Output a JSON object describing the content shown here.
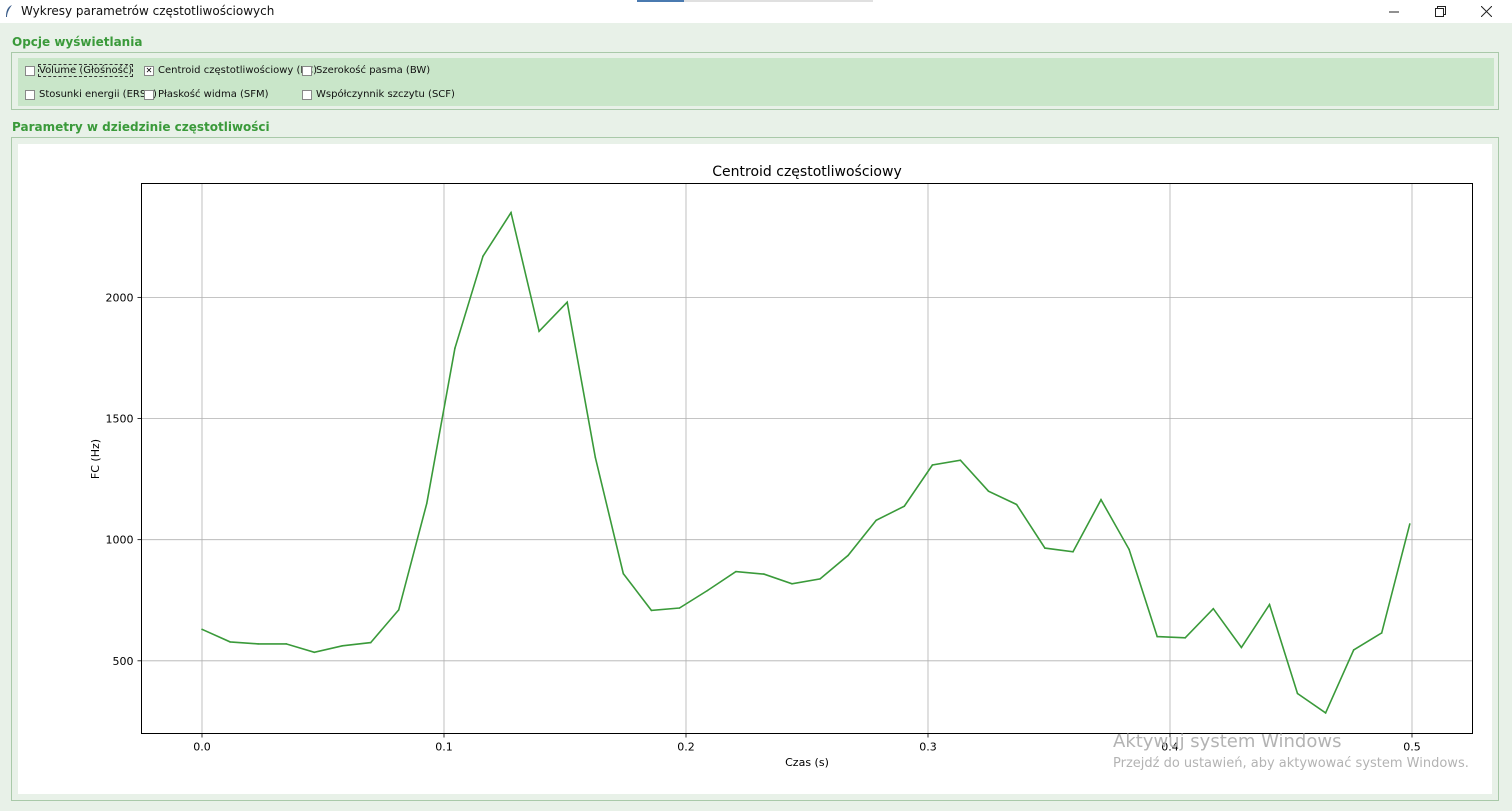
{
  "window": {
    "title": "Wykresy parametrów częstotliwościowych",
    "icon": "feather-icon",
    "controls": [
      "minimize-icon",
      "restore-icon",
      "close-icon"
    ]
  },
  "options": {
    "section_title": "Opcje wyświetlania",
    "items": [
      {
        "label": "Volume (Głośność)",
        "checked": false,
        "focused": true
      },
      {
        "label": "Centroid częstotliwościowy (FC)",
        "checked": true,
        "focused": false
      },
      {
        "label": "Szerokość pasma (BW)",
        "checked": false,
        "focused": false
      },
      {
        "label": "Stosunki energii (ERSB)",
        "checked": false,
        "focused": false
      },
      {
        "label": "Płaskość widma (SFM)",
        "checked": false,
        "focused": false
      },
      {
        "label": "Współczynnik szczytu (SCF)",
        "checked": false,
        "focused": false
      }
    ]
  },
  "plot_section": {
    "section_title": "Parametry w dziedzinie częstotliwości"
  },
  "watermark": {
    "line1": "Aktywuj system Windows",
    "line2": "Przejdź do ustawień, aby aktywować system Windows."
  },
  "colors": {
    "accent": "#3a9a3a",
    "options_bg": "#c9e6c9",
    "window_bg": "#e8f1e8",
    "line": "#3a9a3a"
  },
  "chart_data": {
    "type": "line",
    "title": "Centroid częstotliwościowy",
    "xlabel": "Czas (s)",
    "ylabel": "FC (Hz)",
    "xlim": [
      -0.025,
      0.525
    ],
    "ylim": [
      200,
      2470
    ],
    "grid": true,
    "xticks": [
      0.0,
      0.1,
      0.2,
      0.3,
      0.4,
      0.5
    ],
    "xtick_labels": [
      "0.0",
      "0.1",
      "0.2",
      "0.3",
      "0.4",
      "0.5"
    ],
    "yticks": [
      500,
      1000,
      1500,
      2000
    ],
    "ytick_labels": [
      "500",
      "1000",
      "1500",
      "2000"
    ],
    "series": [
      {
        "color": "#3a9a3a",
        "x": [
          0.0,
          0.0116,
          0.0232,
          0.0348,
          0.0464,
          0.058,
          0.0697,
          0.0813,
          0.0929,
          0.1045,
          0.1161,
          0.1277,
          0.1393,
          0.1509,
          0.1625,
          0.1741,
          0.1857,
          0.1973,
          0.2089,
          0.2206,
          0.2322,
          0.2438,
          0.2554,
          0.267,
          0.2786,
          0.2902,
          0.3018,
          0.3134,
          0.325,
          0.3366,
          0.3483,
          0.3599,
          0.3715,
          0.3831,
          0.3947,
          0.4063,
          0.4179,
          0.4295,
          0.4411,
          0.4527,
          0.4643,
          0.4759,
          0.4875,
          0.4991
        ],
        "y": [
          630,
          578,
          570,
          570,
          535,
          562,
          575,
          710,
          1150,
          1790,
          2170,
          2350,
          1860,
          1980,
          1340,
          860,
          708,
          718,
          790,
          868,
          858,
          818,
          838,
          935,
          1080,
          1138,
          1308,
          1328,
          1200,
          1145,
          965,
          950,
          1165,
          960,
          600,
          595,
          715,
          555,
          732,
          365,
          285,
          545,
          615,
          1065
        ]
      }
    ]
  }
}
